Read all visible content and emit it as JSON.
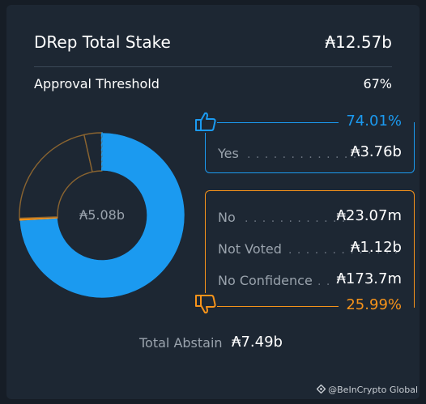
{
  "header": {
    "total_stake_label": "DRep Total Stake",
    "total_stake_value": "₳12.57b",
    "threshold_label": "Approval Threshold",
    "threshold_value": "67%"
  },
  "donut": {
    "center_label": "₳5.08b",
    "segments": [
      {
        "label": "Yes",
        "fraction": 0.7401,
        "color": "#1b9af0",
        "style": "solid"
      },
      {
        "label": "No",
        "fraction": 0.0046,
        "color": "#f7931a",
        "style": "solid"
      },
      {
        "label": "Not Voted",
        "fraction": 0.2204,
        "color": "#1d2733",
        "style": "outline-orange"
      },
      {
        "label": "No Confidence",
        "fraction": 0.0341,
        "color": "#1d2733",
        "style": "outline-orange"
      },
      {
        "label": "Abstain",
        "fraction": 0.0008,
        "color": "#1b9af0",
        "style": "outline-blue"
      }
    ]
  },
  "yes": {
    "percent": "74.01%",
    "label": "Yes",
    "dots": ". . . . . . . . . . . . .",
    "value": "₳3.76b",
    "color": "#1b9af0"
  },
  "no": {
    "percent": "25.99%",
    "color": "#f7931a",
    "rows": [
      {
        "label": "No",
        "dots": ". . . . . . . . . . . .",
        "value": "₳23.07m"
      },
      {
        "label": "Not Voted",
        "dots": ". . . . . . . . . . . . .",
        "value": "₳1.12b"
      },
      {
        "label": "No Confidence",
        "dots": ". .",
        "value": "₳173.7m"
      }
    ]
  },
  "abstain": {
    "label": "Total Abstain",
    "value": "₳7.49b"
  },
  "icons": {
    "thumbs_up": "thumbs-up-icon",
    "thumbs_down": "thumbs-down-icon",
    "brand": "beincrypto-logo-icon"
  },
  "watermark": "@BeInCrypto Global"
}
